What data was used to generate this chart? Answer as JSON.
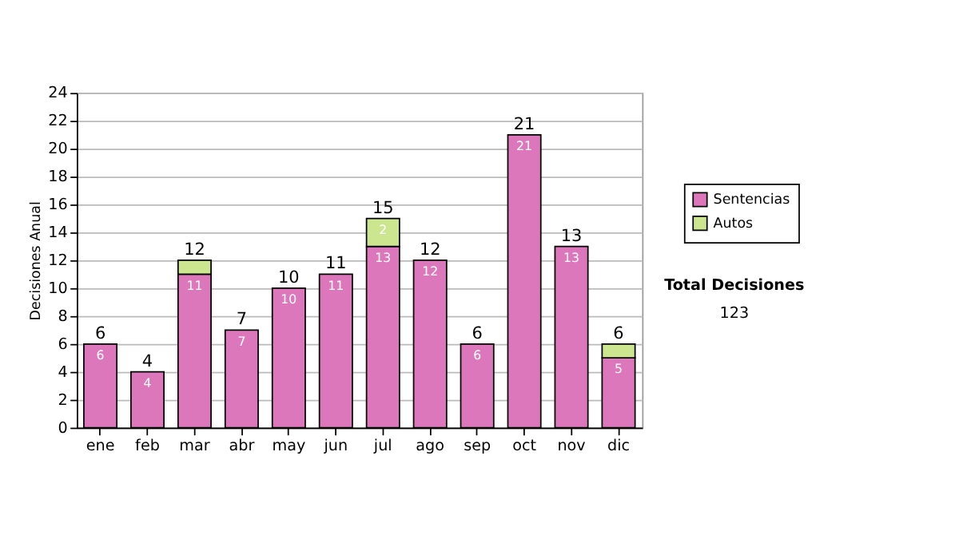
{
  "chart_data": {
    "type": "bar",
    "stacked": true,
    "ylabel": "Decisiones Anual",
    "categories": [
      "ene",
      "feb",
      "mar",
      "abr",
      "may",
      "jun",
      "jul",
      "ago",
      "sep",
      "oct",
      "nov",
      "dic"
    ],
    "series": [
      {
        "name": "Sentencias",
        "color": "#dd77bb",
        "values": [
          6,
          4,
          11,
          7,
          10,
          11,
          13,
          12,
          6,
          21,
          13,
          5
        ],
        "value_labels": [
          "6",
          "4",
          "11",
          "7",
          "10",
          "11",
          "13",
          "12",
          "6",
          "21",
          "13",
          "5"
        ]
      },
      {
        "name": "Autos",
        "color": "#cce58f",
        "values": [
          0,
          0,
          1,
          0,
          0,
          0,
          2,
          0,
          0,
          0,
          0,
          1
        ],
        "value_labels": [
          null,
          null,
          null,
          null,
          null,
          null,
          "2",
          null,
          null,
          null,
          null,
          null
        ]
      }
    ],
    "totals": [
      "6",
      "4",
      "12",
      "7",
      "10",
      "11",
      "15",
      "12",
      "6",
      "21",
      "13",
      "6"
    ],
    "ylim": [
      0,
      24
    ],
    "yticks": [
      0,
      2,
      4,
      6,
      8,
      10,
      12,
      14,
      16,
      18,
      20,
      22,
      24
    ],
    "grid": "y",
    "legend": "right",
    "annotations": [
      "Total Decisiones",
      "123"
    ]
  }
}
